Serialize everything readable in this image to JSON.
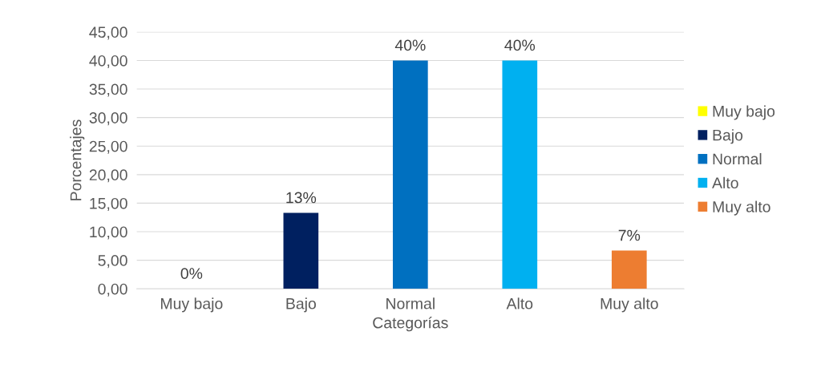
{
  "chart_data": {
    "type": "bar",
    "xlabel": "Categorías",
    "ylabel": "Porcentajes",
    "categories": [
      "Muy bajo",
      "Bajo",
      "Normal",
      "Alto",
      "Muy alto"
    ],
    "series": [
      {
        "name": "Muy bajo",
        "color": "#ffff00",
        "values": [
          0,
          null,
          null,
          null,
          null
        ],
        "value_labels": [
          "0%",
          null,
          null,
          null,
          null
        ]
      },
      {
        "name": "Bajo",
        "color": "#002060",
        "values": [
          null,
          13.3,
          null,
          null,
          null
        ],
        "value_labels": [
          null,
          "13%",
          null,
          null,
          null
        ]
      },
      {
        "name": "Normal",
        "color": "#0070c0",
        "values": [
          null,
          null,
          40,
          null,
          null
        ],
        "value_labels": [
          null,
          null,
          "40%",
          null,
          null
        ]
      },
      {
        "name": "Alto",
        "color": "#00b0f0",
        "values": [
          null,
          null,
          null,
          40,
          null
        ],
        "value_labels": [
          null,
          null,
          null,
          "40%",
          null
        ]
      },
      {
        "name": "Muy alto",
        "color": "#ed7d31",
        "values": [
          null,
          null,
          null,
          null,
          6.7
        ],
        "value_labels": [
          null,
          null,
          null,
          null,
          "7%"
        ]
      }
    ],
    "ylim": [
      0,
      45
    ],
    "yticks": [
      {
        "value": 0,
        "label": "0,00"
      },
      {
        "value": 5,
        "label": "5,00"
      },
      {
        "value": 10,
        "label": "10,00"
      },
      {
        "value": 15,
        "label": "15,00"
      },
      {
        "value": 20,
        "label": "20,00"
      },
      {
        "value": 25,
        "label": "25,00"
      },
      {
        "value": 30,
        "label": "30,00"
      },
      {
        "value": 35,
        "label": "35,00"
      },
      {
        "value": 40,
        "label": "40,00"
      },
      {
        "value": 45,
        "label": "45,00"
      }
    ],
    "grid": "y",
    "legend": "right"
  }
}
